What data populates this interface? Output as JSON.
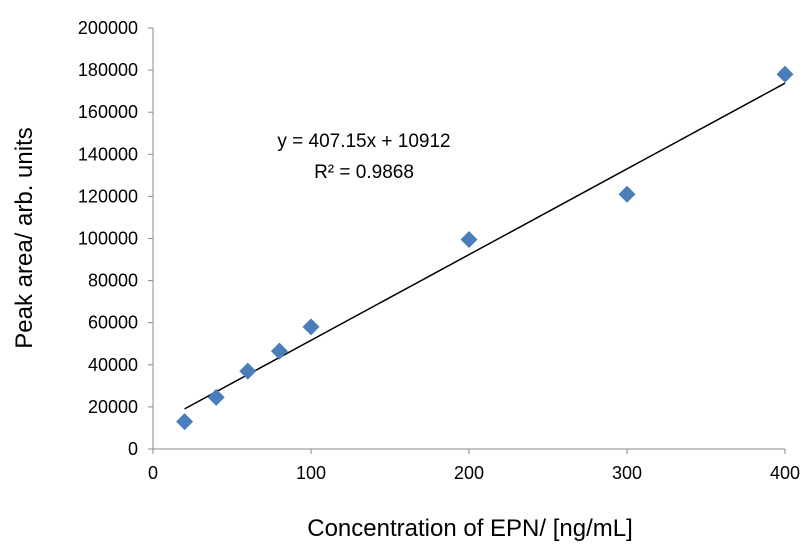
{
  "chart_data": {
    "type": "scatter",
    "title": "",
    "xlabel": "Concentration of EPN/ [ng/mL]",
    "ylabel": "Peak area/ arb. units",
    "xlim": [
      0,
      400
    ],
    "ylim": [
      0,
      200000
    ],
    "xticks": [
      "0",
      "100",
      "200",
      "300",
      "400"
    ],
    "yticks": [
      "0",
      "20000",
      "40000",
      "60000",
      "80000",
      "100000",
      "120000",
      "140000",
      "160000",
      "180000",
      "200000"
    ],
    "grid": false,
    "legend": "none",
    "series": [
      {
        "marker": "diamond",
        "color": "#4a7ebb",
        "x": [
          20,
          40,
          60,
          80,
          100,
          200,
          300,
          400
        ],
        "y": [
          13000,
          24500,
          37000,
          46500,
          58000,
          99500,
          121000,
          178000
        ]
      }
    ],
    "trendline": {
      "type": "linear",
      "slope": 407.15,
      "intercept": 10912,
      "x_range": [
        20,
        400
      ],
      "color": "#000000",
      "equation": "y = 407.15x + 10912",
      "r_squared": "R² = 0.9868"
    }
  }
}
